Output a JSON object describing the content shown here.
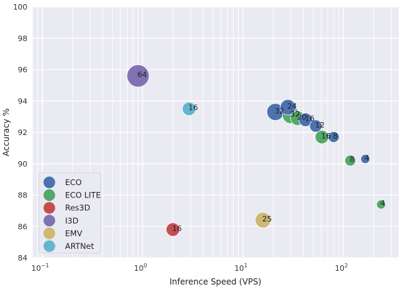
{
  "chart_data": {
    "type": "scatter",
    "title": "",
    "xlabel": "Inference Speed (VPS)",
    "ylabel": "Accuracy %",
    "xscale": "log",
    "xlim_exponents": [
      -1.1,
      2.55
    ],
    "ylim": [
      84,
      100
    ],
    "x_ticks": [
      {
        "base": "10",
        "exp": "−1",
        "value": 0.1
      },
      {
        "base": "10",
        "exp": "0",
        "value": 1
      },
      {
        "base": "10",
        "exp": "1",
        "value": 10
      },
      {
        "base": "10",
        "exp": "2",
        "value": 100
      }
    ],
    "y_ticks": [
      "84",
      "86",
      "88",
      "90",
      "92",
      "94",
      "96",
      "98",
      "100"
    ],
    "grid": true,
    "legend_position": "bottom-left",
    "series": [
      {
        "name": "ECO",
        "color": "#4c72b0",
        "points": [
          {
            "x": 21,
            "y": 93.3,
            "size": 32,
            "label": "32"
          },
          {
            "x": 28,
            "y": 93.6,
            "size": 24,
            "label": "24"
          },
          {
            "x": 42,
            "y": 92.8,
            "size": 16,
            "label": "16"
          },
          {
            "x": 53,
            "y": 92.4,
            "size": 12,
            "label": "12"
          },
          {
            "x": 80,
            "y": 91.7,
            "size": 8,
            "label": "8"
          },
          {
            "x": 165,
            "y": 90.3,
            "size": 4,
            "label": "4"
          }
        ]
      },
      {
        "name": "ECO LITE",
        "color": "#55a868",
        "points": [
          {
            "x": 30,
            "y": 93.1,
            "size": 32,
            "label": "32"
          },
          {
            "x": 35,
            "y": 92.9,
            "size": 20,
            "label": "20"
          },
          {
            "x": 61,
            "y": 91.7,
            "size": 16,
            "label": "16"
          },
          {
            "x": 117,
            "y": 90.2,
            "size": 8,
            "label": "8"
          },
          {
            "x": 237,
            "y": 87.4,
            "size": 4,
            "label": "4"
          }
        ]
      },
      {
        "name": "Res3D",
        "color": "#c44e52",
        "points": [
          {
            "x": 2.0,
            "y": 85.8,
            "size": 16,
            "label": "16"
          }
        ]
      },
      {
        "name": "I3D",
        "color": "#8172b2",
        "points": [
          {
            "x": 0.9,
            "y": 95.6,
            "size": 64,
            "label": "64"
          }
        ]
      },
      {
        "name": "EMV",
        "color": "#ccb974",
        "points": [
          {
            "x": 15.8,
            "y": 86.4,
            "size": 25,
            "label": "25"
          }
        ]
      },
      {
        "name": "ARTNet",
        "color": "#64b5cd",
        "points": [
          {
            "x": 2.9,
            "y": 93.5,
            "size": 16,
            "label": "16"
          }
        ]
      }
    ]
  }
}
